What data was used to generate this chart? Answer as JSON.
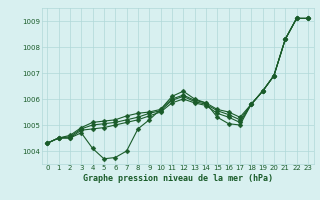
{
  "xlabel": "Graphe pression niveau de la mer (hPa)",
  "hours": [
    0,
    1,
    2,
    3,
    4,
    5,
    6,
    7,
    8,
    9,
    10,
    11,
    12,
    13,
    14,
    15,
    16,
    17,
    18,
    19,
    20,
    21,
    22,
    23
  ],
  "line_a": [
    1004.3,
    1004.5,
    1004.5,
    1004.7,
    1004.1,
    1003.7,
    1003.75,
    1004.0,
    1004.85,
    1005.2,
    1005.6,
    1006.1,
    1006.3,
    1006.0,
    1005.85,
    1005.3,
    1005.05,
    1005.0,
    1005.8,
    1006.3,
    1006.9,
    1008.3,
    1009.1,
    1009.1
  ],
  "line_b": [
    1004.3,
    1004.5,
    1004.5,
    1004.8,
    1004.85,
    1004.9,
    1005.0,
    1005.1,
    1005.2,
    1005.35,
    1005.5,
    1005.85,
    1006.0,
    1005.85,
    1005.75,
    1005.45,
    1005.3,
    1005.1,
    1005.8,
    1006.3,
    1006.9,
    1008.3,
    1009.1,
    1009.1
  ],
  "line_c": [
    1004.3,
    1004.5,
    1004.55,
    1004.85,
    1005.0,
    1005.05,
    1005.1,
    1005.2,
    1005.3,
    1005.45,
    1005.55,
    1005.95,
    1006.1,
    1005.9,
    1005.8,
    1005.55,
    1005.4,
    1005.2,
    1005.8,
    1006.3,
    1006.9,
    1008.3,
    1009.1,
    1009.1
  ],
  "line_d": [
    1004.3,
    1004.5,
    1004.6,
    1004.9,
    1005.1,
    1005.15,
    1005.2,
    1005.35,
    1005.45,
    1005.5,
    1005.6,
    1006.0,
    1006.15,
    1005.95,
    1005.85,
    1005.6,
    1005.5,
    1005.3,
    1005.8,
    1006.3,
    1006.9,
    1008.3,
    1009.1,
    1009.1
  ],
  "ylim": [
    1003.5,
    1009.5
  ],
  "yticks": [
    1004,
    1005,
    1006,
    1007,
    1008,
    1009
  ],
  "xlim": [
    -0.5,
    23.5
  ],
  "line_color": "#1a5c2a",
  "bg_color": "#d8f0f0",
  "grid_color": "#b0d8d8",
  "label_color": "#1a5c2a",
  "tick_fontsize": 5,
  "xlabel_fontsize": 6
}
